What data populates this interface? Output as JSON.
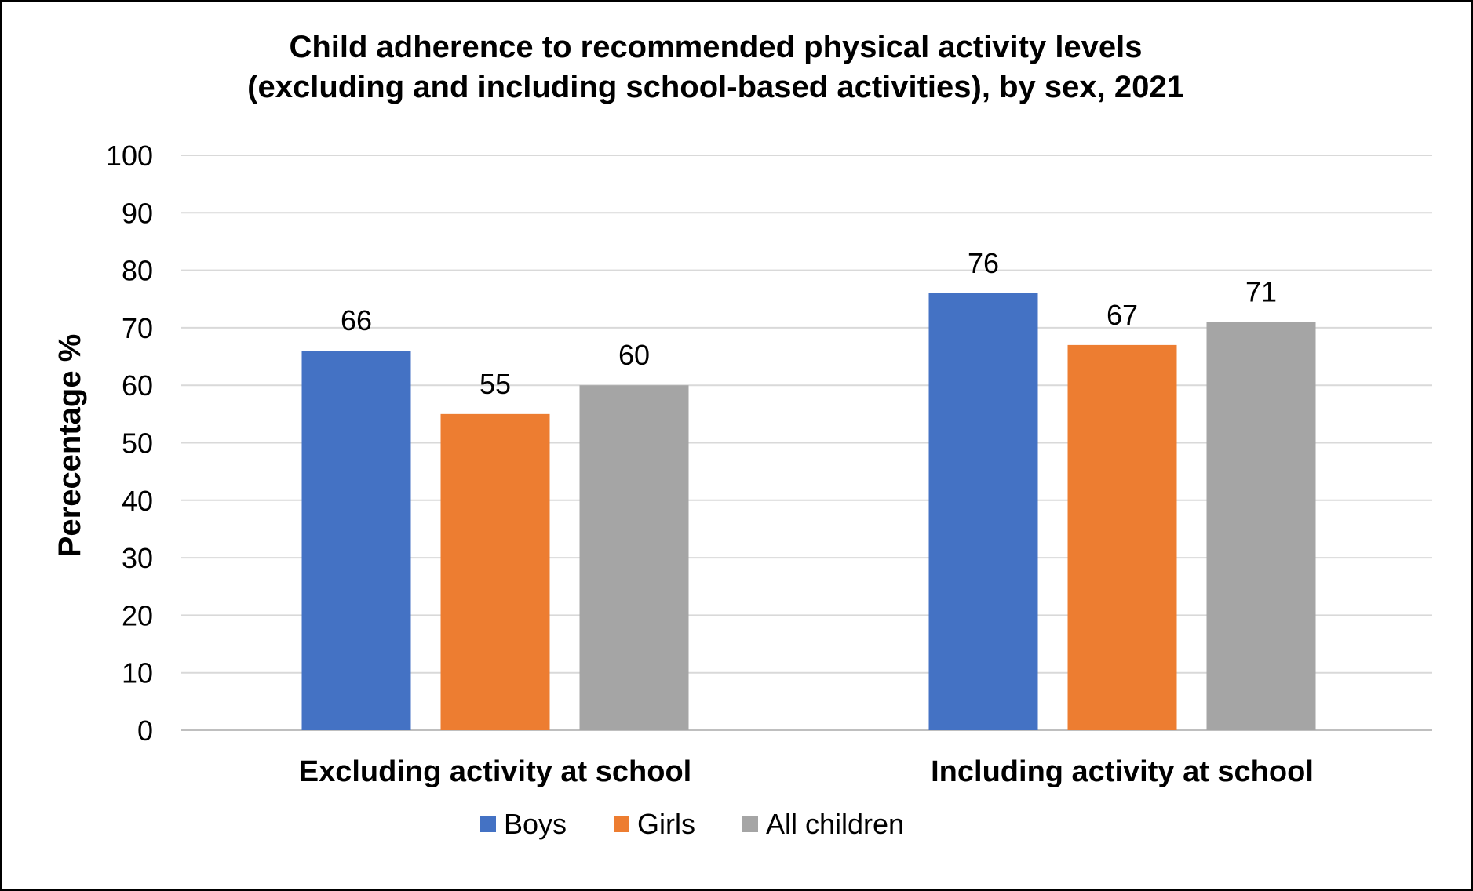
{
  "chart_data": {
    "type": "bar",
    "title": [
      "Child adherence to recommended physical activity levels",
      "(excluding and including school-based activities), by sex, 2021"
    ],
    "xlabel": "",
    "ylabel": "Perecentage %",
    "ylim": [
      0,
      100
    ],
    "yticks": [
      0,
      10,
      20,
      30,
      40,
      50,
      60,
      70,
      80,
      90,
      100
    ],
    "grid": true,
    "legend_position": "bottom",
    "categories": [
      "Excluding activity at school",
      "Including activity at school"
    ],
    "series": [
      {
        "name": "Boys",
        "color": "#4472C4",
        "values": [
          66,
          76
        ]
      },
      {
        "name": "Girls",
        "color": "#ED7D31",
        "values": [
          55,
          67
        ]
      },
      {
        "name": "All children",
        "color": "#A5A5A5",
        "values": [
          60,
          71
        ]
      }
    ],
    "data_labels": true
  }
}
